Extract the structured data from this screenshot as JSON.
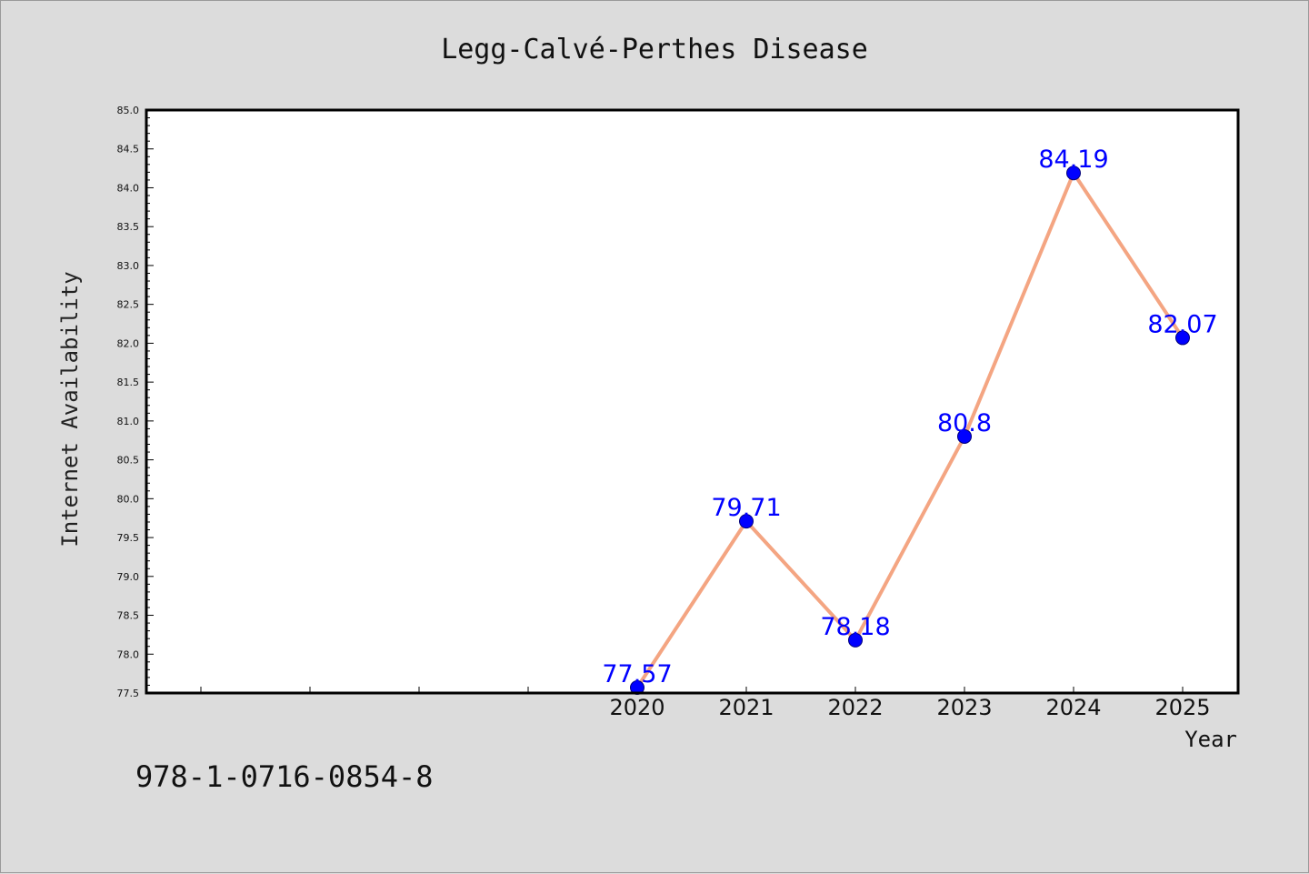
{
  "footer_text": "978-1-0716-0854-8",
  "chart_data": {
    "type": "line",
    "title": "Legg-Calvé-Perthes Disease",
    "xlabel": "Year",
    "ylabel": "Internet Availability",
    "x": [
      "2020",
      "2021",
      "2022",
      "2023",
      "2024",
      "2025"
    ],
    "series": [
      {
        "values": [
          77.57,
          79.71,
          78.18,
          80.8,
          84.19,
          82.07
        ]
      }
    ],
    "data_labels": [
      "77.57",
      "79.71",
      "78.18",
      "80.8",
      "84.19",
      "82.07"
    ],
    "ylim": [
      77.5,
      85.0
    ],
    "yticks": [
      "77.5",
      "78.0",
      "78.5",
      "79.0",
      "79.5",
      "80.0",
      "80.5",
      "81.0",
      "81.5",
      "82.0",
      "82.5",
      "83.0",
      "83.5",
      "84.0",
      "84.5",
      "85.0"
    ],
    "x_slots_before_first": 4,
    "grid": false,
    "line_color": "#f4a582",
    "marker_color": "#0000ff",
    "label_color": "#0000ff",
    "frame_color": "#000000",
    "plot_background": "#ffffff",
    "page_background": "#dcdcdc"
  }
}
